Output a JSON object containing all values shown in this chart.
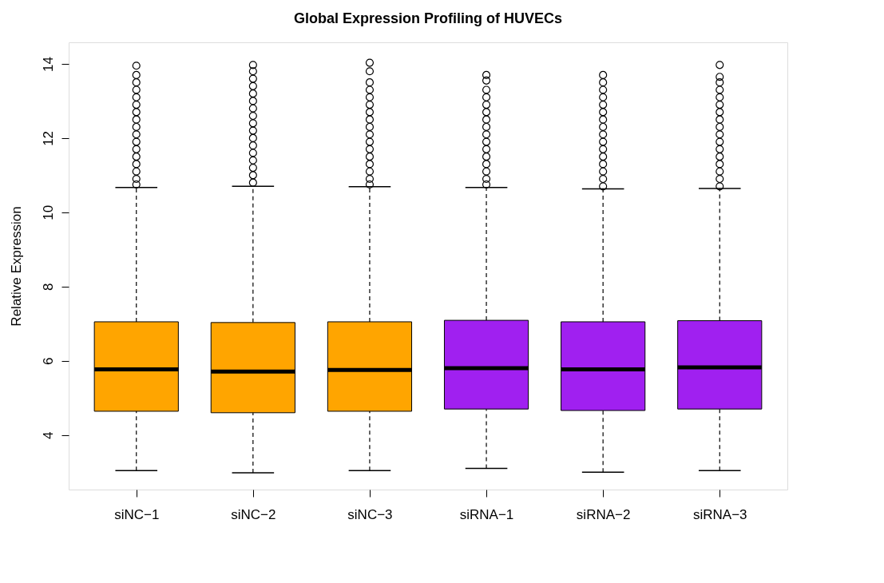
{
  "chart_data": {
    "type": "box",
    "title": "Global Expression Profiling of HUVECs",
    "ylabel": "Relative Expression",
    "categories": [
      "siNC−1",
      "siNC−2",
      "siNC−3",
      "siRNA−1",
      "siRNA−2",
      "siRNA−3"
    ],
    "colors": [
      "#ffa500",
      "#ffa500",
      "#ffa500",
      "#a020f0",
      "#a020f0",
      "#a020f0"
    ],
    "boxes": [
      {
        "low": 3.04,
        "q1": 4.64,
        "median": 5.77,
        "q3": 7.05,
        "high": 10.67,
        "outliers": [
          10.75,
          10.9,
          11.1,
          11.3,
          11.5,
          11.7,
          11.9,
          12.1,
          12.3,
          12.5,
          12.7,
          12.9,
          13.1,
          13.3,
          13.5,
          13.7,
          13.95
        ]
      },
      {
        "low": 2.98,
        "q1": 4.6,
        "median": 5.71,
        "q3": 7.03,
        "high": 10.7,
        "outliers": [
          10.8,
          11.0,
          11.2,
          11.4,
          11.6,
          11.8,
          12.0,
          12.2,
          12.4,
          12.6,
          12.8,
          13.0,
          13.2,
          13.4,
          13.6,
          13.8,
          13.97
        ]
      },
      {
        "low": 3.04,
        "q1": 4.64,
        "median": 5.75,
        "q3": 7.05,
        "high": 10.69,
        "outliers": [
          10.75,
          10.9,
          11.1,
          11.3,
          11.5,
          11.7,
          11.9,
          12.1,
          12.3,
          12.5,
          12.7,
          12.9,
          13.1,
          13.3,
          13.5,
          13.8,
          14.03
        ]
      },
      {
        "low": 3.1,
        "q1": 4.7,
        "median": 5.8,
        "q3": 7.09,
        "high": 10.67,
        "outliers": [
          10.75,
          10.9,
          11.1,
          11.3,
          11.5,
          11.7,
          11.9,
          12.1,
          12.3,
          12.5,
          12.7,
          12.9,
          13.1,
          13.3,
          13.55,
          13.7
        ]
      },
      {
        "low": 3.0,
        "q1": 4.66,
        "median": 5.77,
        "q3": 7.05,
        "high": 10.63,
        "outliers": [
          10.7,
          10.9,
          11.1,
          11.3,
          11.5,
          11.7,
          11.9,
          12.1,
          12.3,
          12.5,
          12.7,
          12.9,
          13.1,
          13.3,
          13.5,
          13.7
        ]
      },
      {
        "low": 3.04,
        "q1": 4.7,
        "median": 5.82,
        "q3": 7.08,
        "high": 10.64,
        "outliers": [
          10.7,
          10.9,
          11.1,
          11.3,
          11.5,
          11.7,
          11.9,
          12.1,
          12.3,
          12.5,
          12.7,
          12.9,
          13.1,
          13.3,
          13.5,
          13.65,
          13.97
        ]
      }
    ],
    "ylim": [
      2.53,
      14.58
    ],
    "yticks": [
      4,
      6,
      8,
      10,
      12,
      14
    ],
    "grid": false
  }
}
